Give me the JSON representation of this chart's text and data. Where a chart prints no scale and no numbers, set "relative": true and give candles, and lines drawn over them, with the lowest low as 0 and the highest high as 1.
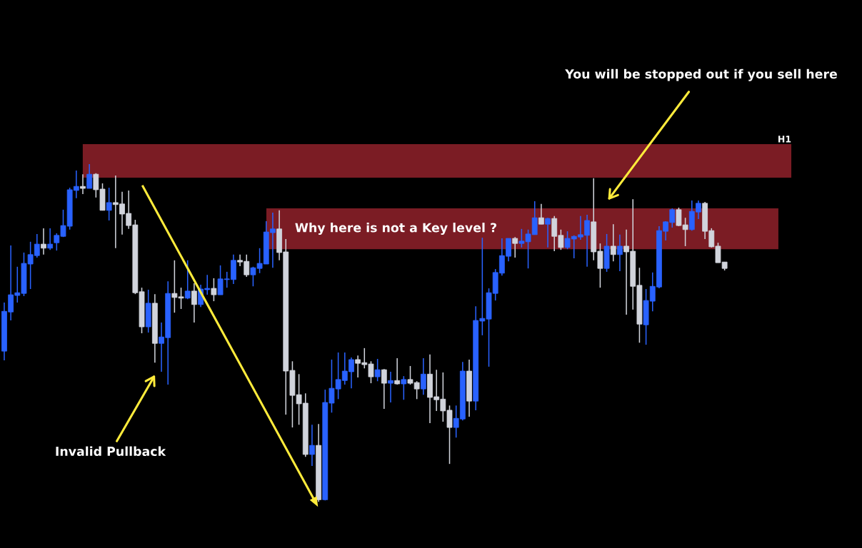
{
  "chart_data": {
    "type": "candlestick",
    "relative": true,
    "categories": [
      null,
      null,
      null,
      null,
      null,
      null,
      null,
      null,
      null,
      null,
      null,
      null,
      null,
      null,
      null,
      null,
      null,
      null,
      null,
      null,
      null,
      null,
      null,
      null,
      null,
      null,
      null,
      null,
      null,
      null,
      null,
      null,
      null,
      null,
      null,
      null,
      null,
      null,
      null,
      null,
      null,
      null,
      null,
      null,
      null,
      null,
      null,
      null,
      null,
      null,
      null,
      null,
      null,
      null,
      null,
      null,
      null,
      null,
      null,
      null,
      null,
      null,
      null,
      null,
      null,
      null,
      null,
      null,
      null,
      null,
      null,
      null,
      null,
      null,
      null,
      null,
      null,
      null,
      null,
      null,
      null,
      null,
      null,
      null,
      null,
      null,
      null,
      null,
      null,
      null,
      null,
      null,
      null,
      null,
      null,
      null,
      null,
      null,
      null,
      null,
      null,
      null,
      null,
      null,
      null,
      null,
      null,
      null,
      null,
      null,
      null
    ],
    "ohlc": [
      [
        0.446,
        0.59,
        0.419,
        0.564
      ],
      [
        0.562,
        0.759,
        0.537,
        0.613
      ],
      [
        0.611,
        0.696,
        0.59,
        0.619
      ],
      [
        0.617,
        0.738,
        0.609,
        0.706
      ],
      [
        0.704,
        0.77,
        0.63,
        0.732
      ],
      [
        0.729,
        0.793,
        0.723,
        0.763
      ],
      [
        0.763,
        0.81,
        0.732,
        0.751
      ],
      [
        0.751,
        0.81,
        0.746,
        0.763
      ],
      [
        0.767,
        0.795,
        0.744,
        0.789
      ],
      [
        0.786,
        0.865,
        0.784,
        0.818
      ],
      [
        0.816,
        0.93,
        0.806,
        0.924
      ],
      [
        0.922,
        0.981,
        0.899,
        0.934
      ],
      [
        0.934,
        0.97,
        0.911,
        0.928
      ],
      [
        0.928,
        1,
        0.928,
        0.97
      ],
      [
        0.97,
        0.973,
        0.901,
        0.924
      ],
      [
        0.926,
        0.943,
        0.863,
        0.863
      ],
      [
        0.863,
        0.93,
        0.833,
        0.886
      ],
      [
        0.886,
        0.966,
        0.751,
        0.88
      ],
      [
        0.882,
        0.918,
        0.791,
        0.852
      ],
      [
        0.854,
        0.922,
        0.808,
        0.818
      ],
      [
        0.82,
        0.835,
        0.615,
        0.619
      ],
      [
        0.622,
        0.634,
        0.499,
        0.518
      ],
      [
        0.518,
        0.628,
        0.501,
        0.588
      ],
      [
        0.588,
        0.615,
        0.412,
        0.469
      ],
      [
        0.469,
        0.531,
        0.385,
        0.488
      ],
      [
        0.486,
        0.653,
        0.347,
        0.617
      ],
      [
        0.617,
        0.715,
        0.56,
        0.605
      ],
      [
        0.607,
        0.634,
        0.571,
        0.603
      ],
      [
        0.603,
        0.715,
        0.6,
        0.624
      ],
      [
        0.624,
        0.647,
        0.531,
        0.584
      ],
      [
        0.584,
        0.643,
        0.577,
        0.63
      ],
      [
        0.628,
        0.672,
        0.613,
        0.632
      ],
      [
        0.632,
        0.662,
        0.594,
        0.613
      ],
      [
        0.613,
        0.7,
        0.613,
        0.66
      ],
      [
        0.658,
        0.681,
        0.634,
        0.66
      ],
      [
        0.658,
        0.732,
        0.645,
        0.715
      ],
      [
        0.715,
        0.732,
        0.698,
        0.71
      ],
      [
        0.712,
        0.732,
        0.666,
        0.672
      ],
      [
        0.672,
        0.696,
        0.638,
        0.693
      ],
      [
        0.691,
        0.751,
        0.677,
        0.706
      ],
      [
        0.704,
        0.831,
        0.704,
        0.799
      ],
      [
        0.797,
        0.856,
        0.693,
        0.808
      ],
      [
        0.808,
        0.863,
        0.715,
        0.738
      ],
      [
        0.74,
        0.778,
        0.258,
        0.387
      ],
      [
        0.389,
        0.416,
        0.22,
        0.315
      ],
      [
        0.317,
        0.378,
        0.228,
        0.29
      ],
      [
        0.292,
        0.321,
        0.133,
        0.14
      ],
      [
        0.14,
        0.228,
        0.106,
        0.167
      ],
      [
        0.167,
        0.23,
        0,
        0.006
      ],
      [
        0.006,
        0.332,
        0.004,
        0.294
      ],
      [
        0.292,
        0.421,
        0.264,
        0.336
      ],
      [
        0.334,
        0.442,
        0.304,
        0.362
      ],
      [
        0.359,
        0.442,
        0.347,
        0.387
      ],
      [
        0.385,
        0.427,
        0.336,
        0.421
      ],
      [
        0.421,
        0.433,
        0.368,
        0.41
      ],
      [
        0.412,
        0.455,
        0.395,
        0.406
      ],
      [
        0.408,
        0.416,
        0.351,
        0.37
      ],
      [
        0.37,
        0.423,
        0.357,
        0.391
      ],
      [
        0.391,
        0.393,
        0.275,
        0.351
      ],
      [
        0.351,
        0.385,
        0.294,
        0.359
      ],
      [
        0.359,
        0.425,
        0.347,
        0.349
      ],
      [
        0.349,
        0.372,
        0.302,
        0.362
      ],
      [
        0.362,
        0.402,
        0.347,
        0.351
      ],
      [
        0.353,
        0.357,
        0.304,
        0.334
      ],
      [
        0.334,
        0.425,
        0.317,
        0.378
      ],
      [
        0.378,
        0.436,
        0.233,
        0.309
      ],
      [
        0.311,
        0.391,
        0.269,
        0.302
      ],
      [
        0.304,
        0.383,
        0.237,
        0.269
      ],
      [
        0.271,
        0.285,
        0.112,
        0.22
      ],
      [
        0.22,
        0.285,
        0.19,
        0.247
      ],
      [
        0.245,
        0.414,
        0.241,
        0.387
      ],
      [
        0.387,
        0.421,
        0.252,
        0.298
      ],
      [
        0.298,
        0.579,
        0.271,
        0.537
      ],
      [
        0.535,
        0.782,
        0.493,
        0.543
      ],
      [
        0.541,
        0.632,
        0.4,
        0.619
      ],
      [
        0.617,
        0.689,
        0.596,
        0.679
      ],
      [
        0.677,
        0.78,
        0.67,
        0.729
      ],
      [
        0.727,
        0.78,
        0.712,
        0.78
      ],
      [
        0.78,
        0.784,
        0.723,
        0.765
      ],
      [
        0.765,
        0.808,
        0.753,
        0.772
      ],
      [
        0.77,
        0.806,
        0.691,
        0.793
      ],
      [
        0.791,
        0.89,
        0.791,
        0.841
      ],
      [
        0.841,
        0.882,
        0.822,
        0.822
      ],
      [
        0.822,
        0.841,
        0.753,
        0.839
      ],
      [
        0.839,
        0.846,
        0.742,
        0.786
      ],
      [
        0.789,
        0.806,
        0.746,
        0.753
      ],
      [
        0.753,
        0.801,
        0.748,
        0.78
      ],
      [
        0.778,
        0.789,
        0.721,
        0.786
      ],
      [
        0.784,
        0.846,
        0.776,
        0.791
      ],
      [
        0.789,
        0.85,
        0.696,
        0.833
      ],
      [
        0.829,
        0.958,
        0.715,
        0.74
      ],
      [
        0.742,
        0.765,
        0.634,
        0.691
      ],
      [
        0.691,
        0.793,
        0.681,
        0.757
      ],
      [
        0.757,
        0.822,
        0.712,
        0.732
      ],
      [
        0.732,
        0.791,
        0.683,
        0.757
      ],
      [
        0.757,
        0.806,
        0.554,
        0.74
      ],
      [
        0.742,
        0.896,
        0.569,
        0.638
      ],
      [
        0.641,
        0.693,
        0.471,
        0.526
      ],
      [
        0.524,
        0.63,
        0.465,
        0.596
      ],
      [
        0.594,
        0.679,
        0.564,
        0.638
      ],
      [
        0.636,
        0.816,
        0.632,
        0.803
      ],
      [
        0.801,
        0.831,
        0.774,
        0.829
      ],
      [
        0.827,
        0.869,
        0.812,
        0.865
      ],
      [
        0.865,
        0.871,
        0.816,
        0.818
      ],
      [
        0.82,
        0.841,
        0.757,
        0.806
      ],
      [
        0.806,
        0.892,
        0.803,
        0.86
      ],
      [
        0.858,
        0.892,
        0.837,
        0.884
      ],
      [
        0.884,
        0.888,
        0.778,
        0.801
      ],
      [
        0.803,
        0.81,
        0.753,
        0.755
      ],
      [
        0.757,
        0.767,
        0.708,
        0.708
      ],
      [
        0.71,
        0.71,
        0.685,
        0.691
      ]
    ],
    "colors": [
      "#2962ff",
      "#2962ff",
      "#2962ff",
      "#2962ff",
      "#2962ff",
      "#2962ff",
      "#d1d4dc",
      "#2962ff",
      "#2962ff",
      "#2962ff",
      "#2962ff",
      "#2962ff",
      "#d1d4dc",
      "#2962ff",
      "#d1d4dc",
      "#d1d4dc",
      "#2962ff",
      "#d1d4dc",
      "#d1d4dc",
      "#d1d4dc",
      "#d1d4dc",
      "#d1d4dc",
      "#2962ff",
      "#d1d4dc",
      "#2962ff",
      "#2962ff",
      "#d1d4dc",
      "#d1d4dc",
      "#2962ff",
      "#d1d4dc",
      "#2962ff",
      "#2962ff",
      "#d1d4dc",
      "#2962ff",
      "#2962ff",
      "#2962ff",
      "#d1d4dc",
      "#d1d4dc",
      "#2962ff",
      "#2962ff",
      "#2962ff",
      "#2962ff",
      "#d1d4dc",
      "#d1d4dc",
      "#d1d4dc",
      "#d1d4dc",
      "#d1d4dc",
      "#2962ff",
      "#d1d4dc",
      "#2962ff",
      "#2962ff",
      "#2962ff",
      "#2962ff",
      "#2962ff",
      "#d1d4dc",
      "#d1d4dc",
      "#d1d4dc",
      "#2962ff",
      "#d1d4dc",
      "#2962ff",
      "#d1d4dc",
      "#2962ff",
      "#d1d4dc",
      "#d1d4dc",
      "#2962ff",
      "#d1d4dc",
      "#d1d4dc",
      "#d1d4dc",
      "#d1d4dc",
      "#2962ff",
      "#2962ff",
      "#d1d4dc",
      "#2962ff",
      "#2962ff",
      "#2962ff",
      "#2962ff",
      "#2962ff",
      "#2962ff",
      "#d1d4dc",
      "#2962ff",
      "#2962ff",
      "#2962ff",
      "#d1d4dc",
      "#2962ff",
      "#d1d4dc",
      "#d1d4dc",
      "#2962ff",
      "#2962ff",
      "#2962ff",
      "#2962ff",
      "#d1d4dc",
      "#d1d4dc",
      "#2962ff",
      "#d1d4dc",
      "#2962ff",
      "#d1d4dc",
      "#d1d4dc",
      "#d1d4dc",
      "#2962ff",
      "#2962ff",
      "#2962ff",
      "#2962ff",
      "#2962ff",
      "#d1d4dc",
      "#d1d4dc",
      "#2962ff",
      "#2962ff",
      "#d1d4dc",
      "#d1d4dc",
      "#d1d4dc",
      "#d1d4dc"
    ],
    "bands": [
      {
        "axis": "y",
        "from": 0.96,
        "to": 1.059,
        "label": "H1",
        "color": "#7b1c24"
      },
      {
        "axis": "y",
        "from": 0.748,
        "to": 0.869,
        "label": "Why here is not a Key level ?",
        "color": "#7b1c24"
      }
    ],
    "annotations": [
      "You will be stopped out if you sell here",
      "Invalid Pullback"
    ]
  }
}
